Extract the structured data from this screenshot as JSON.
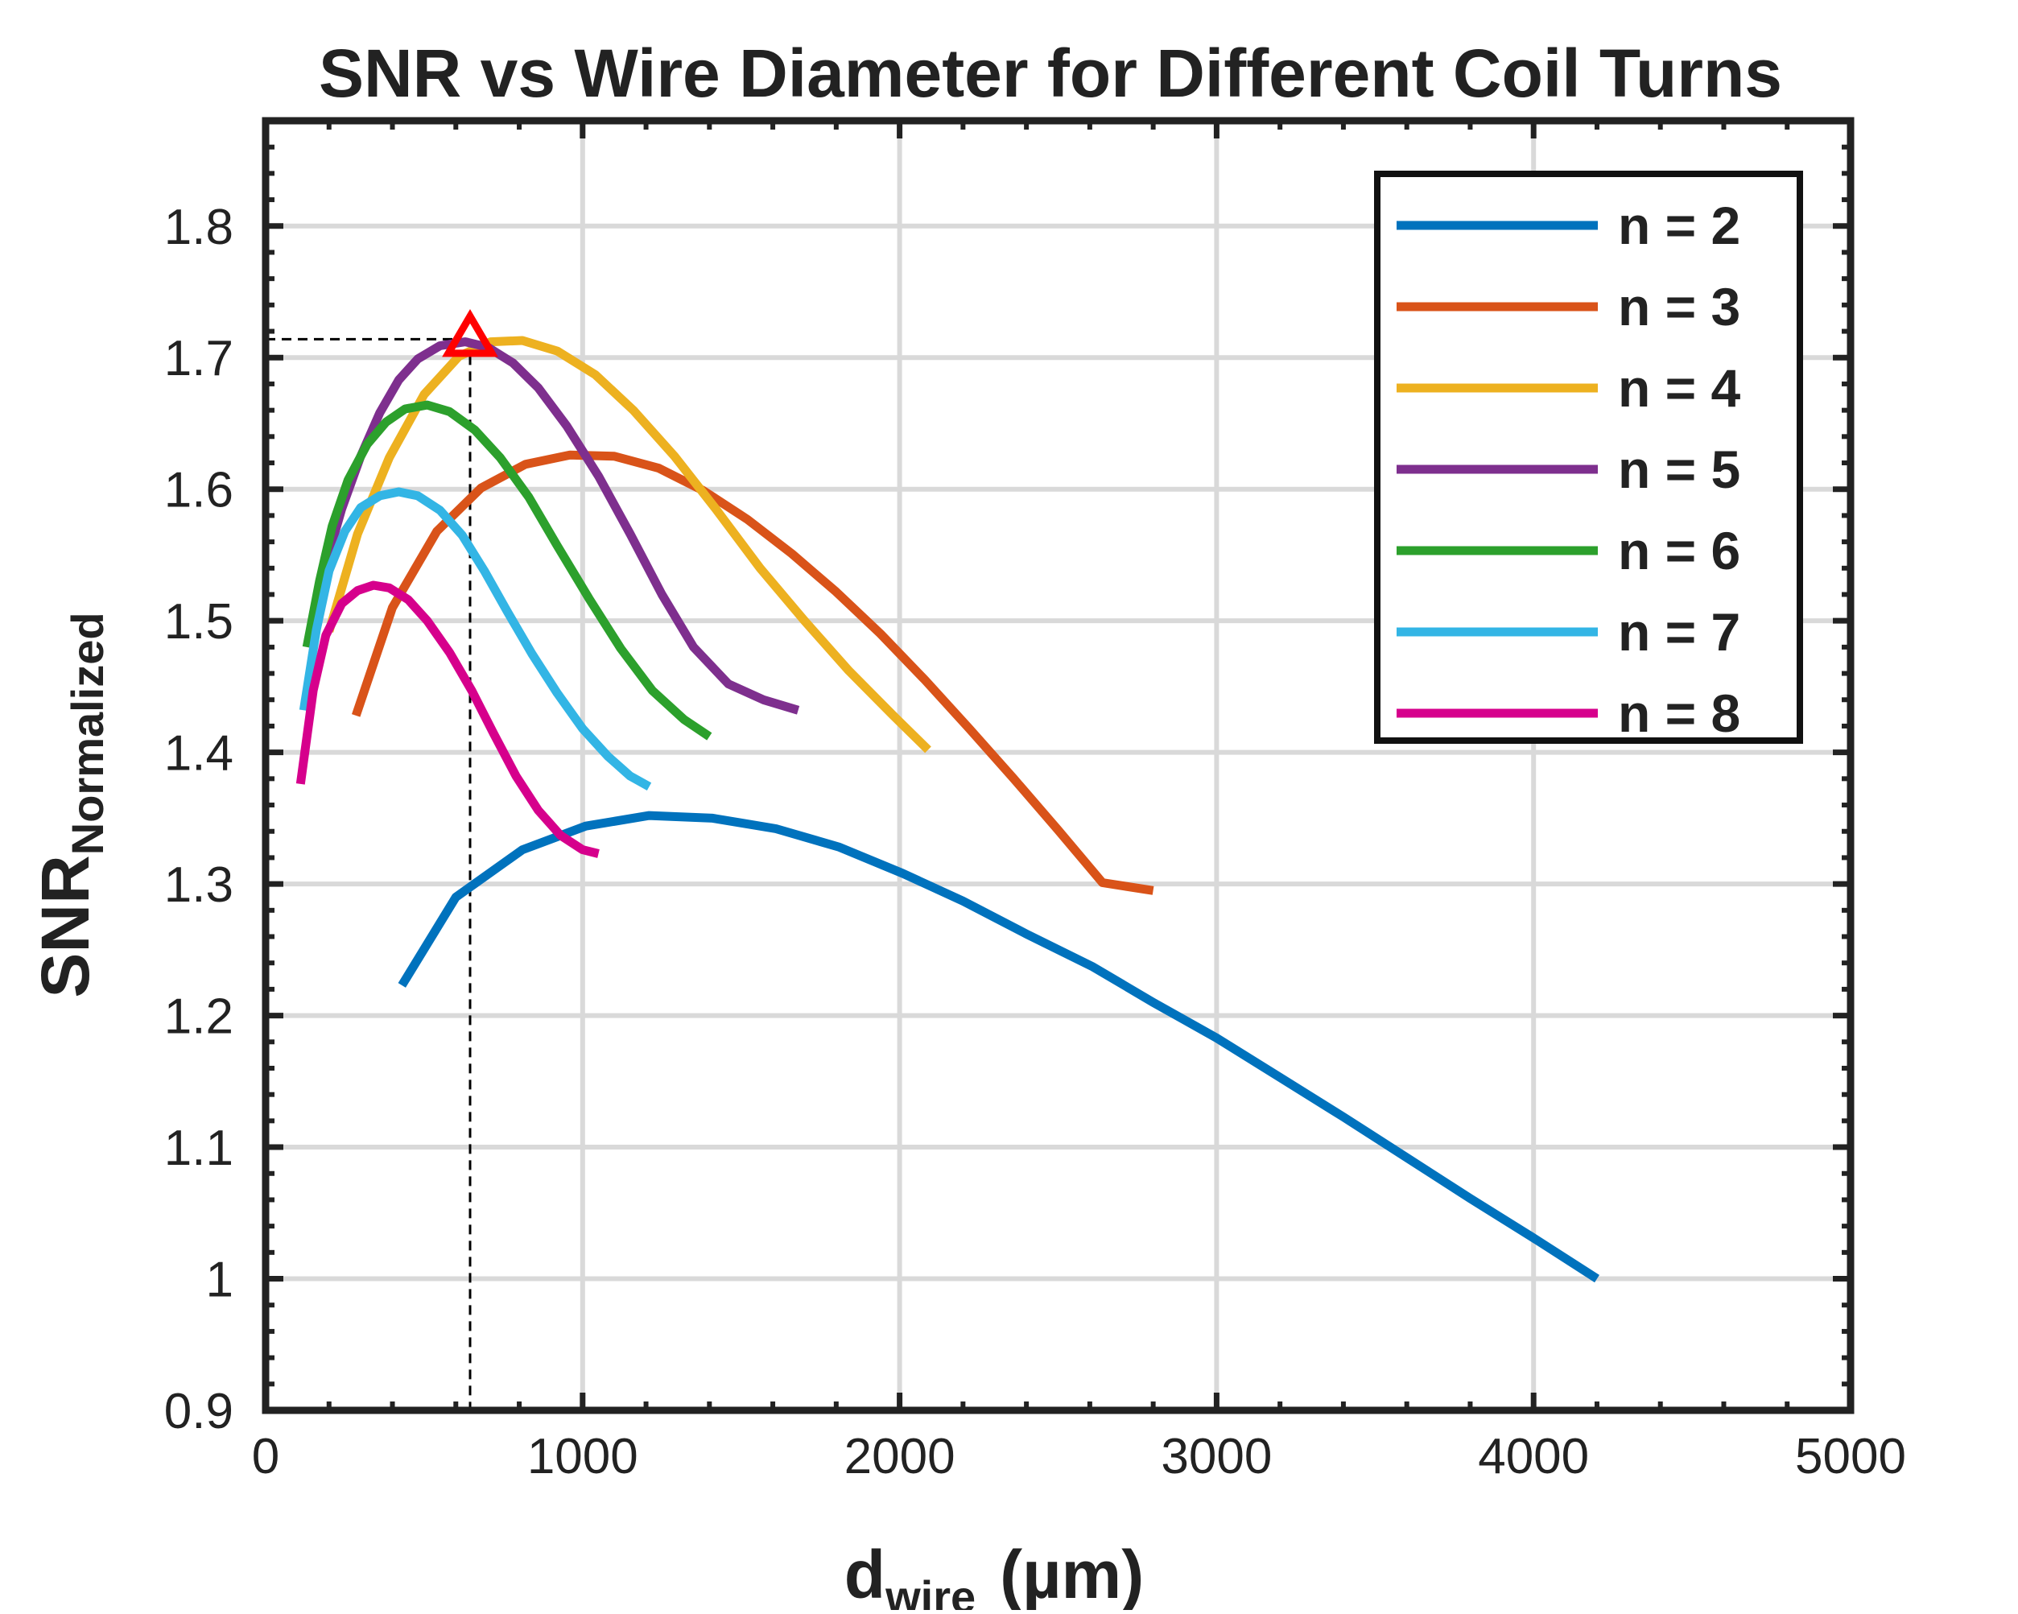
{
  "chart_data": {
    "type": "line",
    "title": "SNR vs Wire Diameter for Different Coil Turns",
    "xlabel": {
      "main": "d",
      "sub": "wire",
      "unit": "(µm)"
    },
    "ylabel": {
      "main": "SNR",
      "sub": "Normalized"
    },
    "xlim": [
      0,
      5000
    ],
    "ylim": [
      0.9,
      1.88
    ],
    "x_ticks": [
      0,
      1000,
      2000,
      3000,
      4000,
      5000
    ],
    "x_tick_labels": [
      "0",
      "1000",
      "2000",
      "3000",
      "4000",
      "5000"
    ],
    "y_ticks": [
      0.9,
      1.0,
      1.1,
      1.2,
      1.3,
      1.4,
      1.5,
      1.6,
      1.7,
      1.8
    ],
    "y_tick_labels": [
      "0.9",
      "1",
      "1.1",
      "1.2",
      "1.3",
      "1.4",
      "1.5",
      "1.6",
      "1.7",
      "1.8"
    ],
    "grid": true,
    "legend_position": "top-right",
    "series": [
      {
        "name": "n = 2",
        "color": "#0072BD",
        "x": [
          430,
          600,
          810,
          1010,
          1210,
          1410,
          1610,
          1810,
          2010,
          2200,
          2400,
          2610,
          2800,
          3000,
          3200,
          3400,
          3600,
          3800,
          4000,
          4200
        ],
        "y": [
          1.223,
          1.29,
          1.326,
          1.344,
          1.352,
          1.35,
          1.342,
          1.328,
          1.308,
          1.287,
          1.262,
          1.237,
          1.21,
          1.183,
          1.153,
          1.123,
          1.092,
          1.061,
          1.031,
          1.0
        ]
      },
      {
        "name": "n = 3",
        "color": "#D95319",
        "x": [
          285,
          400,
          540,
          680,
          820,
          960,
          1100,
          1240,
          1380,
          1520,
          1660,
          1800,
          1940,
          2080,
          2220,
          2360,
          2500,
          2640,
          2800
        ],
        "y": [
          1.428,
          1.51,
          1.568,
          1.601,
          1.619,
          1.626,
          1.625,
          1.616,
          1.599,
          1.577,
          1.551,
          1.522,
          1.49,
          1.455,
          1.418,
          1.38,
          1.341,
          1.301,
          1.295
        ]
      },
      {
        "name": "n = 4",
        "color": "#EDB120",
        "x": [
          200,
          290,
          390,
          500,
          610,
          710,
          810,
          920,
          1040,
          1160,
          1290,
          1420,
          1560,
          1700,
          1840,
          1980,
          2090
        ],
        "y": [
          1.492,
          1.566,
          1.624,
          1.672,
          1.701,
          1.712,
          1.713,
          1.705,
          1.687,
          1.66,
          1.625,
          1.585,
          1.54,
          1.5,
          1.462,
          1.428,
          1.402
        ]
      },
      {
        "name": "n = 5",
        "color": "#7E2F8E",
        "x": [
          140,
          190,
          240,
          300,
          360,
          420,
          480,
          550,
          630,
          700,
          780,
          860,
          950,
          1050,
          1150,
          1250,
          1350,
          1460,
          1570,
          1680
        ],
        "y": [
          1.49,
          1.543,
          1.585,
          1.625,
          1.658,
          1.683,
          1.699,
          1.709,
          1.712,
          1.708,
          1.696,
          1.677,
          1.648,
          1.61,
          1.566,
          1.52,
          1.48,
          1.452,
          1.44,
          1.432
        ]
      },
      {
        "name": "n = 6",
        "color": "#2CA02C",
        "x": [
          130,
          170,
          210,
          260,
          320,
          380,
          440,
          510,
          580,
          660,
          740,
          830,
          920,
          1020,
          1120,
          1220,
          1320,
          1400
        ],
        "y": [
          1.48,
          1.53,
          1.572,
          1.607,
          1.634,
          1.651,
          1.661,
          1.664,
          1.659,
          1.645,
          1.624,
          1.594,
          1.557,
          1.517,
          1.479,
          1.447,
          1.425,
          1.412
        ]
      },
      {
        "name": "n = 7",
        "color": "#33B5E5",
        "x": [
          120,
          160,
          200,
          250,
          300,
          360,
          420,
          480,
          550,
          620,
          690,
          760,
          840,
          920,
          1000,
          1080,
          1150,
          1210
        ],
        "y": [
          1.432,
          1.493,
          1.538,
          1.568,
          1.586,
          1.595,
          1.598,
          1.595,
          1.584,
          1.565,
          1.538,
          1.508,
          1.475,
          1.445,
          1.418,
          1.397,
          1.382,
          1.374
        ]
      },
      {
        "name": "n = 8",
        "color": "#D6008C",
        "x": [
          110,
          150,
          190,
          240,
          290,
          340,
          390,
          450,
          510,
          580,
          650,
          720,
          790,
          860,
          930,
          1000,
          1050
        ],
        "y": [
          1.376,
          1.447,
          1.489,
          1.513,
          1.523,
          1.527,
          1.525,
          1.516,
          1.5,
          1.476,
          1.447,
          1.414,
          1.382,
          1.356,
          1.337,
          1.326,
          1.323
        ]
      }
    ],
    "marker": {
      "shape": "triangle",
      "color": "#FF0000",
      "x": 645,
      "y": 1.714
    },
    "reference_lines": {
      "x": 645,
      "y": 1.714,
      "style": "dashed",
      "color": "#000000"
    }
  }
}
